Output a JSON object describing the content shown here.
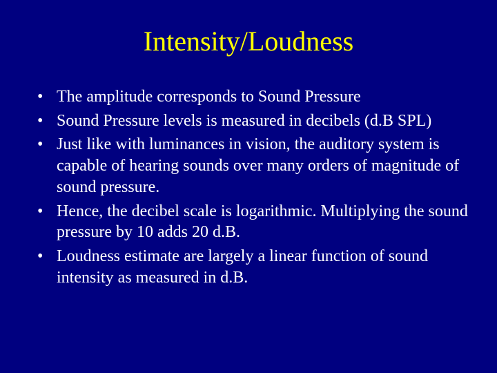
{
  "slide": {
    "title": "Intensity/Loudness",
    "bullets": [
      "The amplitude corresponds to Sound Pressure",
      "Sound Pressure levels is measured in decibels (d.B SPL)",
      "Just like with luminances in vision, the auditory system is capable of hearing sounds over many orders of magnitude of sound pressure.",
      "Hence, the decibel scale is logarithmic. Multiplying the sound pressure by 10 adds 20 d.B.",
      "Loudness estimate are largely a linear function of sound intensity as measured in d.B."
    ],
    "colors": {
      "background": "#000080",
      "title": "#ffff00",
      "body_text": "#ffffff"
    },
    "typography": {
      "title_fontsize": 40,
      "body_fontsize": 24,
      "font_family": "serif"
    }
  }
}
